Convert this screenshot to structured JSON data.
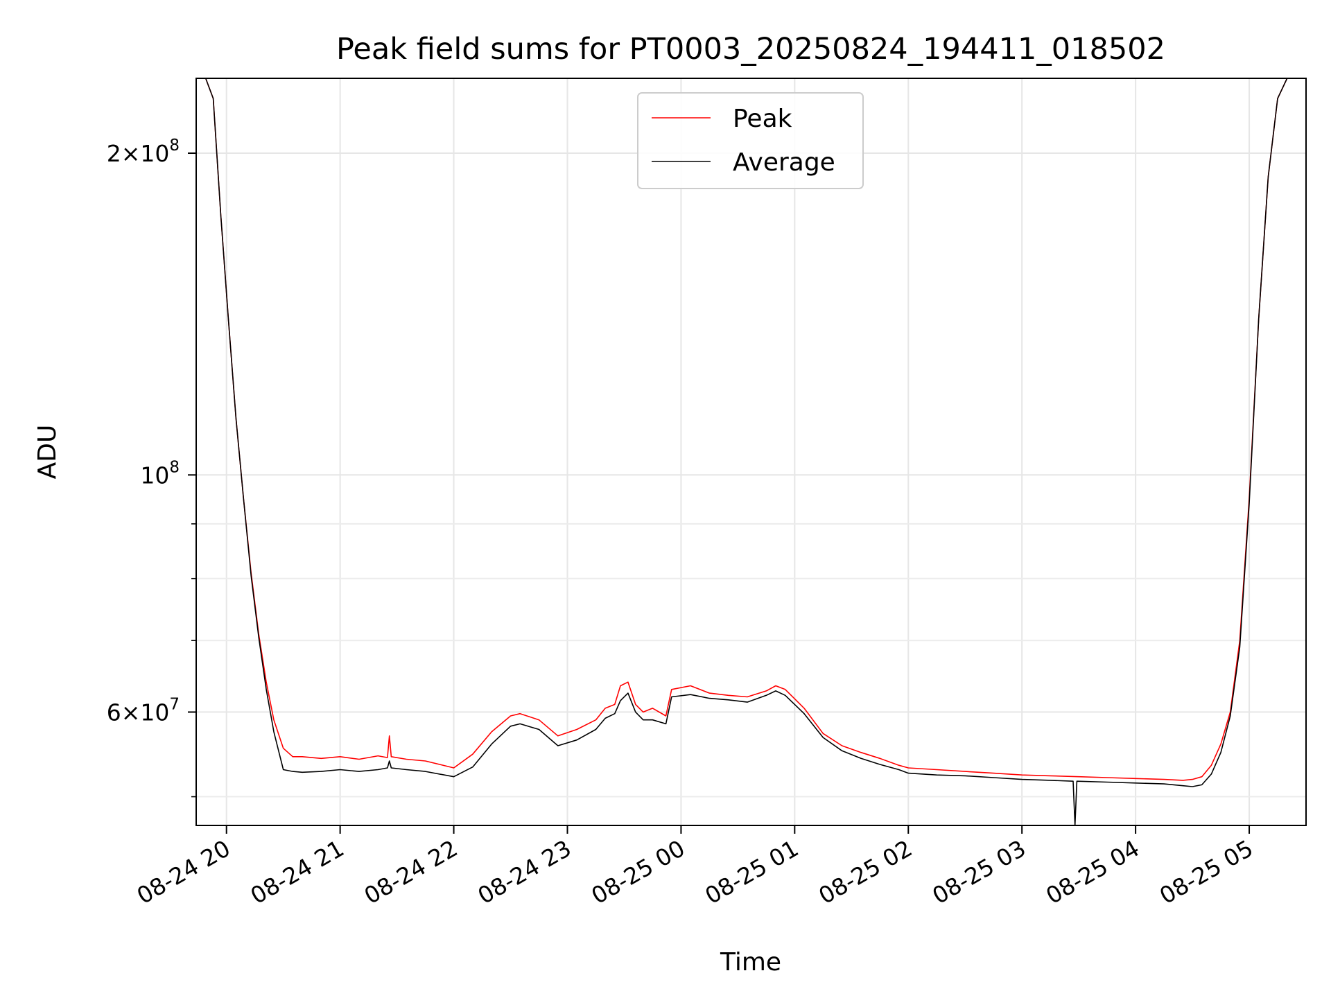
{
  "chart_data": {
    "type": "line",
    "title": "Peak field sums for PT0003_20250824_194411_018502",
    "xlabel": "Time",
    "ylabel": "ADU",
    "yscale": "log",
    "ylim": [
      47000000,
      235000000
    ],
    "xlim": [
      "2025-08-24 19:44",
      "2025-08-25 05:30"
    ],
    "grid": true,
    "legend_position": "top-center",
    "x_ticks": [
      {
        "t": "2025-08-24 20:00",
        "label": "08-24 20"
      },
      {
        "t": "2025-08-24 21:00",
        "label": "08-24 21"
      },
      {
        "t": "2025-08-24 22:00",
        "label": "08-24 22"
      },
      {
        "t": "2025-08-24 23:00",
        "label": "08-24 23"
      },
      {
        "t": "2025-08-25 00:00",
        "label": "08-25 00"
      },
      {
        "t": "2025-08-25 01:00",
        "label": "08-25 01"
      },
      {
        "t": "2025-08-25 02:00",
        "label": "08-25 02"
      },
      {
        "t": "2025-08-25 03:00",
        "label": "08-25 03"
      },
      {
        "t": "2025-08-25 04:00",
        "label": "08-25 04"
      },
      {
        "t": "2025-08-25 05:00",
        "label": "08-25 05"
      }
    ],
    "y_ticks_major": [
      {
        "v": 60000000,
        "mant": "6",
        "exp": "7"
      },
      {
        "v": 100000000,
        "mant": "",
        "exp": "8"
      },
      {
        "v": 200000000,
        "mant": "2",
        "exp": "8"
      }
    ],
    "y_ticks_minor": [
      50000000,
      70000000,
      80000000,
      90000000
    ],
    "series": [
      {
        "name": "Peak",
        "color": "#ff0000",
        "x": [
          "2025-08-24 19:45",
          "2025-08-24 19:49",
          "2025-08-24 19:53",
          "2025-08-24 19:57",
          "2025-08-24 20:01",
          "2025-08-24 20:05",
          "2025-08-24 20:09",
          "2025-08-24 20:13",
          "2025-08-24 20:17",
          "2025-08-24 20:21",
          "2025-08-24 20:25",
          "2025-08-24 20:30",
          "2025-08-24 20:35",
          "2025-08-24 20:40",
          "2025-08-24 20:50",
          "2025-08-24 21:00",
          "2025-08-24 21:10",
          "2025-08-24 21:20",
          "2025-08-24 21:25",
          "2025-08-24 21:26",
          "2025-08-24 21:27",
          "2025-08-24 21:35",
          "2025-08-24 21:45",
          "2025-08-24 22:00",
          "2025-08-24 22:10",
          "2025-08-24 22:20",
          "2025-08-24 22:30",
          "2025-08-24 22:35",
          "2025-08-24 22:45",
          "2025-08-24 22:55",
          "2025-08-24 23:05",
          "2025-08-24 23:15",
          "2025-08-24 23:20",
          "2025-08-24 23:25",
          "2025-08-24 23:28",
          "2025-08-24 23:32",
          "2025-08-24 23:36",
          "2025-08-24 23:40",
          "2025-08-24 23:45",
          "2025-08-24 23:52",
          "2025-08-24 23:55",
          "2025-08-25 00:05",
          "2025-08-25 00:15",
          "2025-08-25 00:25",
          "2025-08-25 00:35",
          "2025-08-25 00:45",
          "2025-08-25 00:50",
          "2025-08-25 00:55",
          "2025-08-25 01:05",
          "2025-08-25 01:15",
          "2025-08-25 01:25",
          "2025-08-25 01:35",
          "2025-08-25 01:45",
          "2025-08-25 01:55",
          "2025-08-25 02:00",
          "2025-08-25 02:15",
          "2025-08-25 02:30",
          "2025-08-25 02:45",
          "2025-08-25 03:00",
          "2025-08-25 03:15",
          "2025-08-25 03:30",
          "2025-08-25 03:45",
          "2025-08-25 04:00",
          "2025-08-25 04:15",
          "2025-08-25 04:25",
          "2025-08-25 04:30",
          "2025-08-25 04:35",
          "2025-08-25 04:40",
          "2025-08-25 04:45",
          "2025-08-25 04:50",
          "2025-08-25 04:55",
          "2025-08-25 05:00",
          "2025-08-25 05:05",
          "2025-08-25 05:10",
          "2025-08-25 05:15",
          "2025-08-25 05:20",
          "2025-08-25 05:25"
        ],
        "y": [
          235000000,
          235000000,
          225000000,
          175000000,
          140000000,
          113000000,
          95000000,
          81000000,
          71000000,
          64000000,
          59000000,
          55500000,
          54500000,
          54500000,
          54300000,
          54500000,
          54200000,
          54600000,
          54400000,
          57000000,
          54500000,
          54200000,
          54000000,
          53200000,
          54800000,
          57500000,
          59500000,
          59800000,
          59000000,
          57000000,
          57800000,
          59000000,
          60500000,
          61000000,
          63500000,
          64000000,
          61000000,
          60000000,
          60500000,
          59500000,
          63000000,
          63500000,
          62500000,
          62200000,
          62000000,
          62800000,
          63500000,
          63000000,
          60500000,
          57300000,
          55800000,
          55000000,
          54300000,
          53500000,
          53200000,
          53000000,
          52800000,
          52600000,
          52400000,
          52300000,
          52200000,
          52100000,
          52000000,
          51900000,
          51800000,
          51900000,
          52200000,
          53500000,
          56000000,
          60000000,
          70000000,
          95000000,
          140000000,
          190000000,
          225000000,
          235000000,
          235000000
        ]
      },
      {
        "name": "Average",
        "color": "#000000",
        "x": [
          "2025-08-24 19:45",
          "2025-08-24 19:49",
          "2025-08-24 19:53",
          "2025-08-24 19:57",
          "2025-08-24 20:01",
          "2025-08-24 20:05",
          "2025-08-24 20:09",
          "2025-08-24 20:13",
          "2025-08-24 20:17",
          "2025-08-24 20:21",
          "2025-08-24 20:25",
          "2025-08-24 20:30",
          "2025-08-24 20:35",
          "2025-08-24 20:40",
          "2025-08-24 20:50",
          "2025-08-24 21:00",
          "2025-08-24 21:10",
          "2025-08-24 21:20",
          "2025-08-24 21:25",
          "2025-08-24 21:26",
          "2025-08-24 21:27",
          "2025-08-24 21:35",
          "2025-08-24 21:45",
          "2025-08-24 22:00",
          "2025-08-24 22:10",
          "2025-08-24 22:20",
          "2025-08-24 22:30",
          "2025-08-24 22:35",
          "2025-08-24 22:45",
          "2025-08-24 22:55",
          "2025-08-24 23:05",
          "2025-08-24 23:15",
          "2025-08-24 23:20",
          "2025-08-24 23:25",
          "2025-08-24 23:28",
          "2025-08-24 23:32",
          "2025-08-24 23:36",
          "2025-08-24 23:40",
          "2025-08-24 23:45",
          "2025-08-24 23:52",
          "2025-08-24 23:55",
          "2025-08-25 00:05",
          "2025-08-25 00:15",
          "2025-08-25 00:25",
          "2025-08-25 00:35",
          "2025-08-25 00:45",
          "2025-08-25 00:50",
          "2025-08-25 00:55",
          "2025-08-25 01:05",
          "2025-08-25 01:15",
          "2025-08-25 01:25",
          "2025-08-25 01:35",
          "2025-08-25 01:45",
          "2025-08-25 01:55",
          "2025-08-25 02:00",
          "2025-08-25 02:15",
          "2025-08-25 02:30",
          "2025-08-25 02:45",
          "2025-08-25 03:00",
          "2025-08-25 03:15",
          "2025-08-25 03:27",
          "2025-08-25 03:28",
          "2025-08-25 03:29",
          "2025-08-25 03:45",
          "2025-08-25 04:00",
          "2025-08-25 04:15",
          "2025-08-25 04:25",
          "2025-08-25 04:30",
          "2025-08-25 04:35",
          "2025-08-25 04:40",
          "2025-08-25 04:45",
          "2025-08-25 04:50",
          "2025-08-25 04:55",
          "2025-08-25 05:00",
          "2025-08-25 05:05",
          "2025-08-25 05:10",
          "2025-08-25 05:15",
          "2025-08-25 05:20",
          "2025-08-25 05:25"
        ],
        "y": [
          235000000,
          235000000,
          225000000,
          175000000,
          140000000,
          113000000,
          95000000,
          80500000,
          70500000,
          63000000,
          57500000,
          53000000,
          52800000,
          52700000,
          52800000,
          53000000,
          52800000,
          53000000,
          53200000,
          54000000,
          53200000,
          53000000,
          52800000,
          52200000,
          53300000,
          56000000,
          58200000,
          58500000,
          57800000,
          55800000,
          56500000,
          57800000,
          59200000,
          59800000,
          61500000,
          62500000,
          60000000,
          59000000,
          59000000,
          58500000,
          62000000,
          62300000,
          61800000,
          61600000,
          61300000,
          62200000,
          62800000,
          62200000,
          59800000,
          56800000,
          55200000,
          54300000,
          53600000,
          53000000,
          52600000,
          52400000,
          52300000,
          52100000,
          51900000,
          51800000,
          51700000,
          47000000,
          51700000,
          51600000,
          51500000,
          51400000,
          51200000,
          51100000,
          51300000,
          52500000,
          55000000,
          59500000,
          69000000,
          94000000,
          140000000,
          190000000,
          225000000,
          235000000,
          235000000
        ]
      }
    ]
  }
}
